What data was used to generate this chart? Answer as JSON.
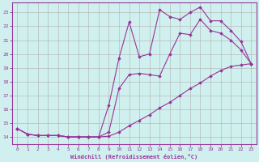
{
  "xlabel": "Windchill (Refroidissement éolien,°C)",
  "background_color": "#cff0ee",
  "grid_color": "#b0b0b0",
  "line_color": "#993399",
  "xlim": [
    -0.5,
    23.5
  ],
  "ylim": [
    13.5,
    23.7
  ],
  "yticks": [
    14,
    15,
    16,
    17,
    18,
    19,
    20,
    21,
    22,
    23
  ],
  "xticks": [
    0,
    1,
    2,
    3,
    4,
    5,
    6,
    7,
    8,
    9,
    10,
    11,
    12,
    13,
    14,
    15,
    16,
    17,
    18,
    19,
    20,
    21,
    22,
    23
  ],
  "series1_x": [
    0,
    1,
    2,
    3,
    4,
    5,
    6,
    7,
    8,
    9,
    10,
    11,
    12,
    13,
    14,
    15,
    16,
    17,
    18,
    19,
    20,
    21,
    22,
    23
  ],
  "series1_y": [
    14.6,
    14.2,
    14.1,
    14.1,
    14.1,
    14.0,
    14.0,
    14.0,
    14.0,
    14.05,
    14.35,
    14.8,
    15.2,
    15.6,
    16.1,
    16.5,
    17.0,
    17.5,
    17.9,
    18.4,
    18.8,
    19.1,
    19.2,
    19.3
  ],
  "series2_x": [
    0,
    1,
    2,
    3,
    4,
    5,
    6,
    7,
    8,
    9,
    10,
    11,
    12,
    13,
    14,
    15,
    16,
    17,
    18,
    19,
    20,
    21,
    22,
    23
  ],
  "series2_y": [
    14.6,
    14.2,
    14.1,
    14.1,
    14.1,
    14.0,
    14.0,
    14.0,
    14.0,
    14.35,
    17.5,
    18.5,
    18.6,
    18.5,
    18.4,
    20.0,
    21.5,
    21.4,
    22.5,
    21.7,
    21.5,
    21.0,
    20.3,
    19.3
  ],
  "series3_x": [
    0,
    1,
    2,
    3,
    4,
    5,
    6,
    7,
    8,
    9,
    10,
    11,
    12,
    13,
    14,
    15,
    16,
    17,
    18,
    19,
    20,
    21,
    22,
    23
  ],
  "series3_y": [
    14.6,
    14.2,
    14.1,
    14.1,
    14.1,
    14.0,
    14.0,
    14.0,
    14.0,
    16.3,
    19.7,
    22.3,
    19.8,
    20.0,
    23.2,
    22.7,
    22.5,
    23.0,
    23.4,
    22.4,
    22.4,
    21.7,
    20.9,
    19.3
  ]
}
